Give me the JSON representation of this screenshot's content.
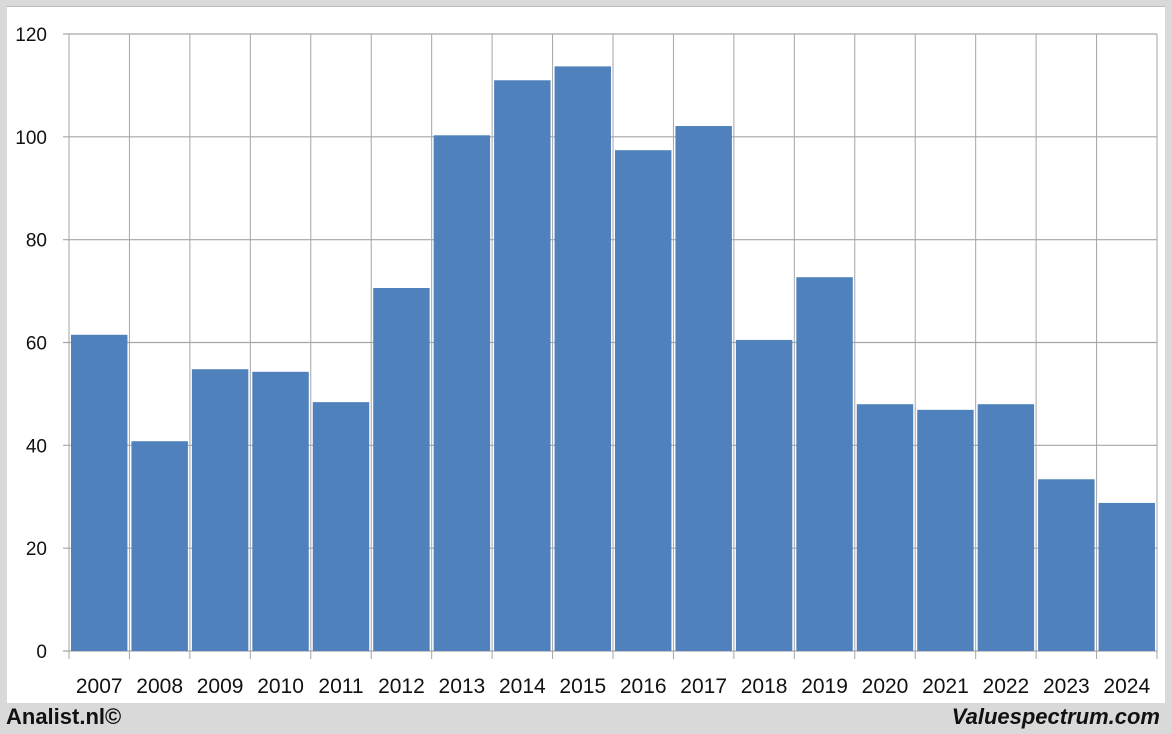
{
  "chart_data": {
    "type": "bar",
    "categories": [
      "2007",
      "2008",
      "2009",
      "2010",
      "2011",
      "2012",
      "2013",
      "2014",
      "2015",
      "2016",
      "2017",
      "2018",
      "2019",
      "2020",
      "2021",
      "2022",
      "2023",
      "2024"
    ],
    "values": [
      61.5,
      40.8,
      54.8,
      54.3,
      48.4,
      70.6,
      100.3,
      111.0,
      113.7,
      97.4,
      102.1,
      60.5,
      72.7,
      48.0,
      46.9,
      48.0,
      33.4,
      28.8
    ],
    "title": "",
    "xlabel": "",
    "ylabel": "",
    "ylim": [
      0,
      120
    ],
    "yticks": [
      0,
      20,
      40,
      60,
      80,
      100,
      120
    ],
    "grid": true,
    "bar_color": "#4f81bd"
  },
  "footer": {
    "left": "Analist.nl©",
    "right": "Valuespectrum.com"
  }
}
